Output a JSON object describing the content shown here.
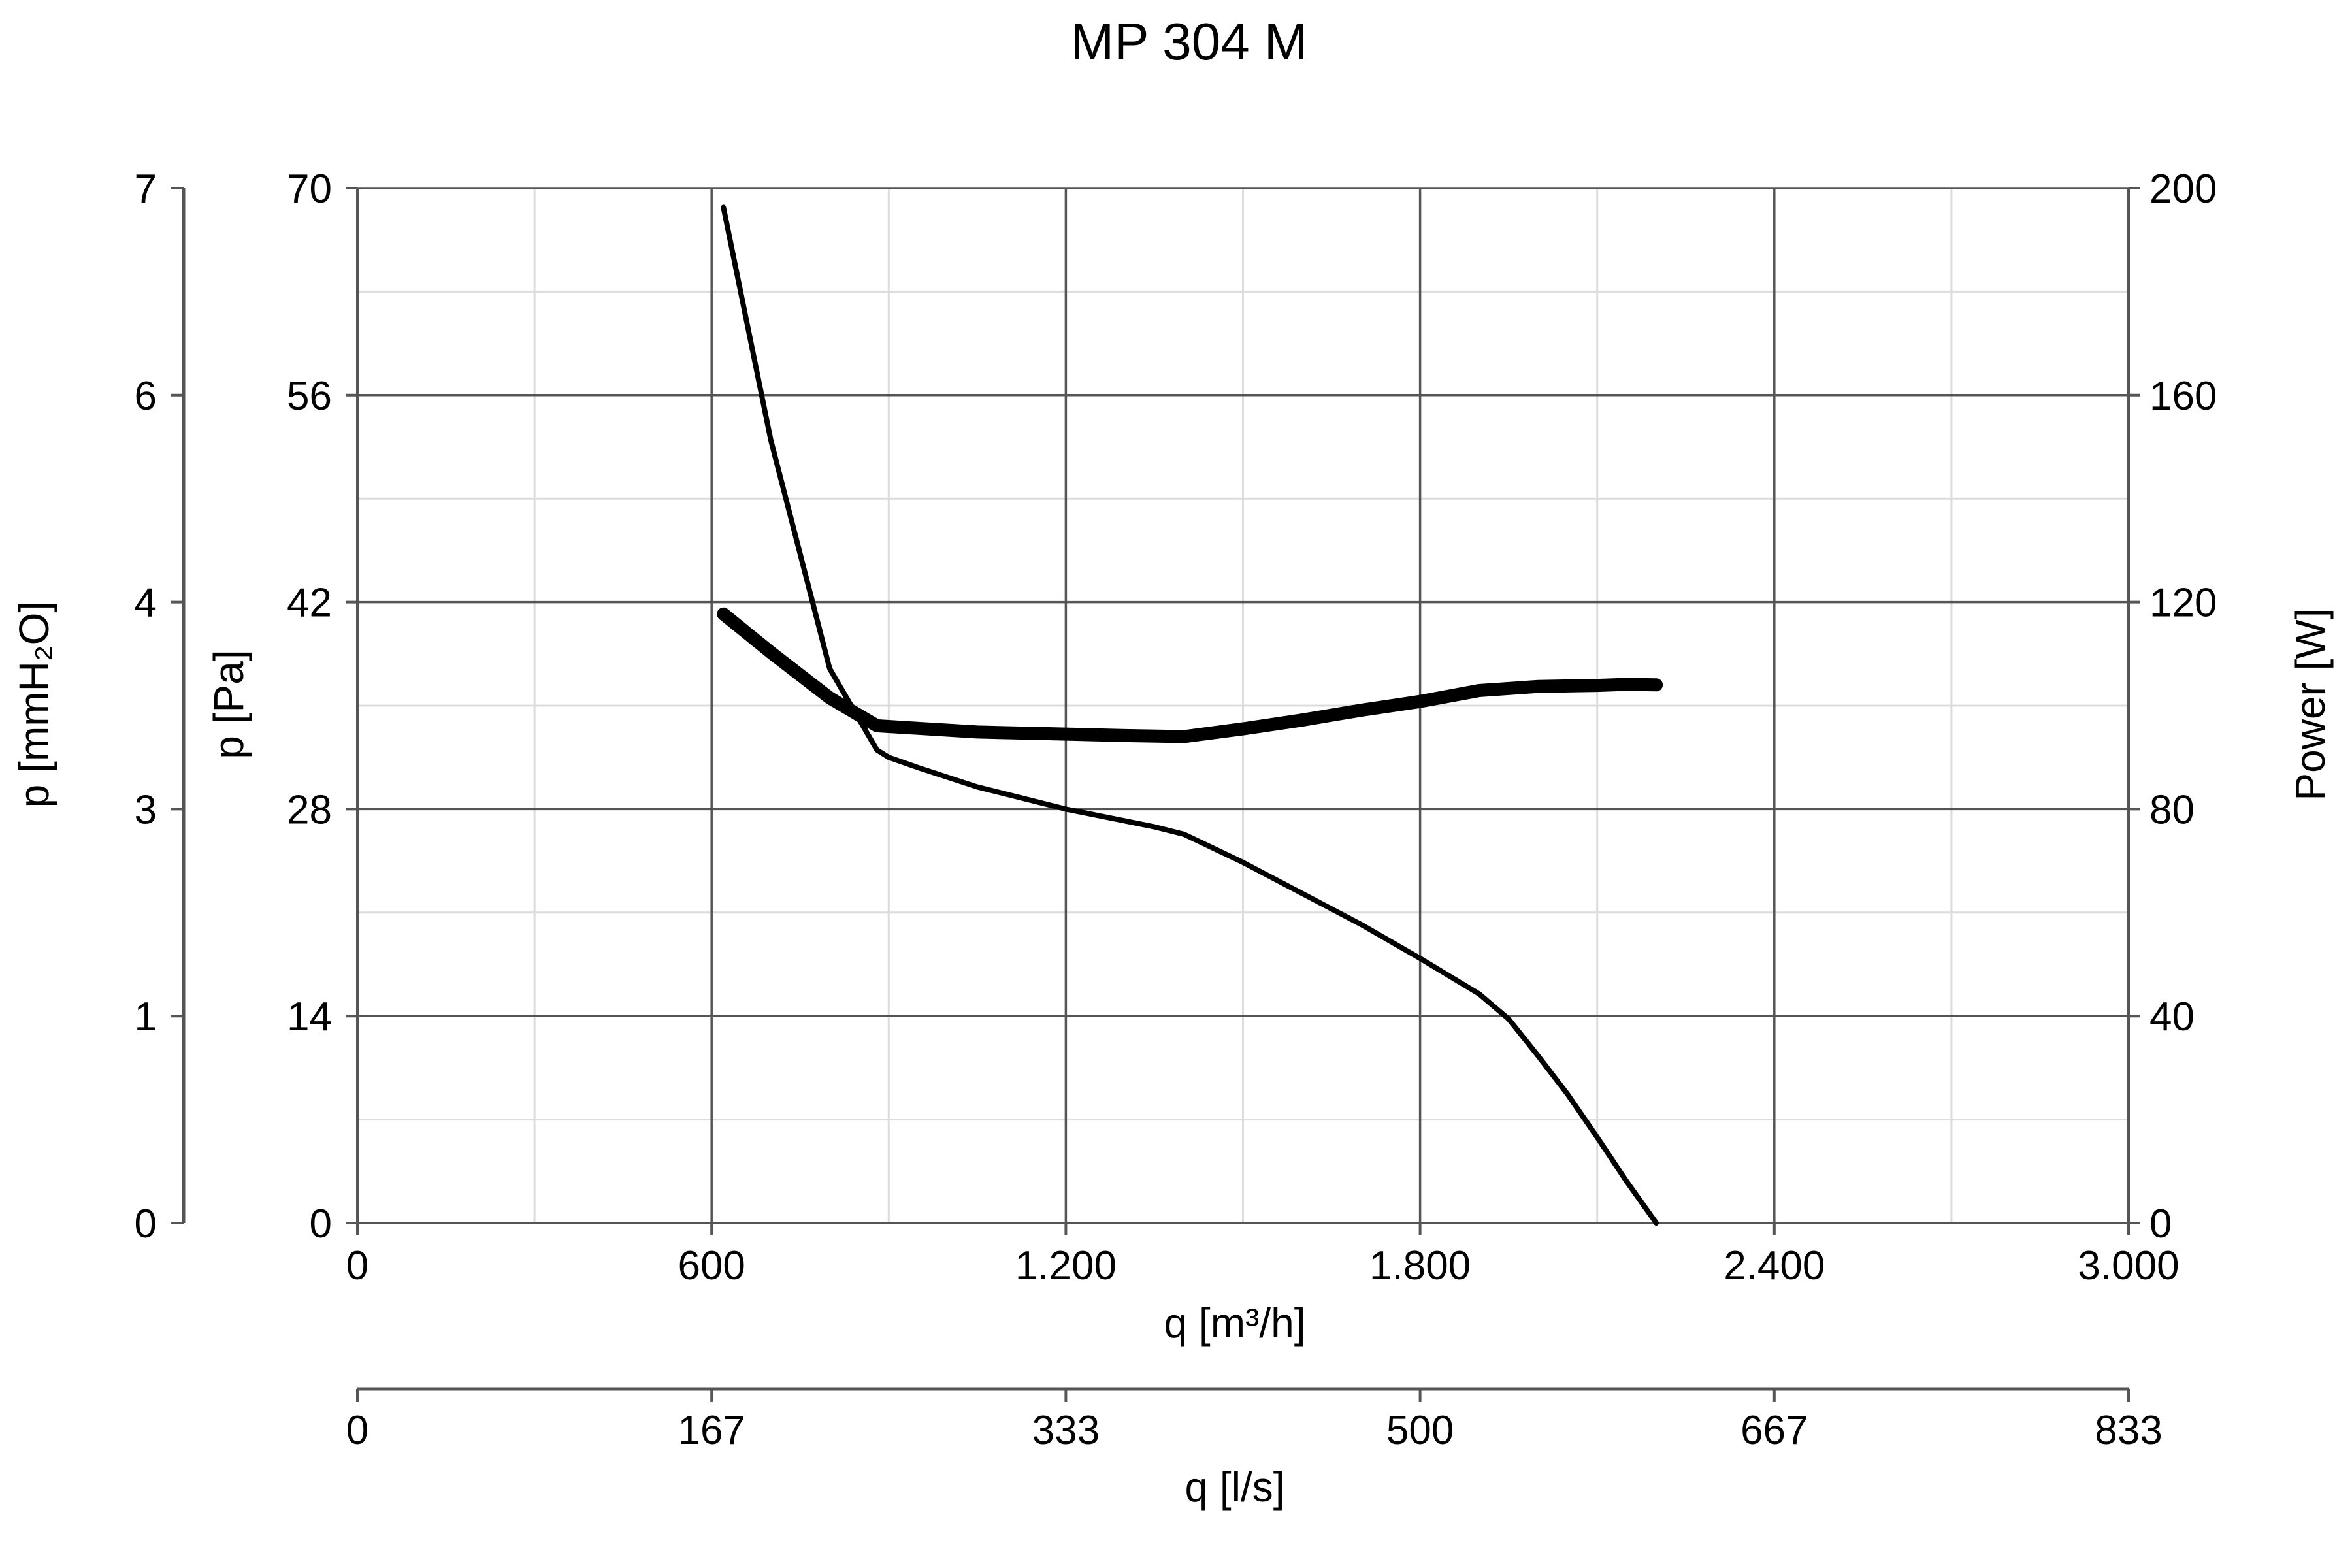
{
  "chart_data": {
    "type": "line",
    "title": "MP 304 M",
    "x_axis": {
      "label": "q [m³/h]",
      "range": [
        0,
        3000
      ],
      "ticks": [
        0,
        600,
        1200,
        1800,
        2400,
        3000
      ],
      "tick_labels": [
        "0",
        "600",
        "1.200",
        "1.800",
        "2.400",
        "3.000"
      ],
      "minor_ticks": [
        300,
        900,
        1500,
        2100,
        2700
      ]
    },
    "x2_axis": {
      "label": "q [l/s]",
      "range": [
        0,
        833
      ],
      "tick_labels": [
        "0",
        "167",
        "333",
        "500",
        "667",
        "833"
      ]
    },
    "y_axis_left": {
      "label": "p [Pa]",
      "range": [
        0,
        70
      ],
      "ticks": [
        0,
        14,
        28,
        42,
        56,
        70
      ],
      "tick_labels": [
        "0",
        "14",
        "28",
        "42",
        "56",
        "70"
      ],
      "minor_ticks": [
        7,
        21,
        35,
        49,
        63
      ]
    },
    "y_axis_far_left": {
      "label": "p [mmH₂O]",
      "tick_labels": [
        "0",
        "1",
        "3",
        "4",
        "6",
        "7"
      ]
    },
    "y_axis_right": {
      "label": "Power [W]",
      "range": [
        0,
        200
      ],
      "ticks": [
        0,
        40,
        80,
        120,
        160,
        200
      ],
      "tick_labels": [
        "0",
        "40",
        "80",
        "120",
        "160",
        "200"
      ]
    },
    "grid": true,
    "series": [
      {
        "axis": "left",
        "style": "thin",
        "x": [
          620,
          700,
          800,
          880,
          900,
          950,
          1050,
          1200,
          1350,
          1400,
          1500,
          1600,
          1700,
          1800,
          1900,
          1950,
          2000,
          2050,
          2100,
          2150,
          2200
        ],
        "y": [
          68.7,
          53,
          37.5,
          32,
          31.5,
          30.8,
          29.5,
          28,
          26.8,
          26.3,
          24.4,
          22.3,
          20.2,
          17.9,
          15.5,
          13.8,
          11.3,
          8.7,
          5.8,
          2.8,
          0
        ]
      },
      {
        "axis": "right",
        "style": "thick",
        "x": [
          620,
          700,
          800,
          880,
          950,
          1050,
          1200,
          1300,
          1400,
          1500,
          1600,
          1700,
          1800,
          1900,
          2000,
          2100,
          2150,
          2200
        ],
        "y": [
          117.7,
          110.3,
          101.5,
          96.1,
          95.6,
          94.9,
          94.5,
          94.2,
          94.0,
          95.5,
          97.2,
          99.1,
          100.8,
          102.9,
          103.7,
          103.9,
          104.1,
          104.0
        ]
      }
    ]
  }
}
